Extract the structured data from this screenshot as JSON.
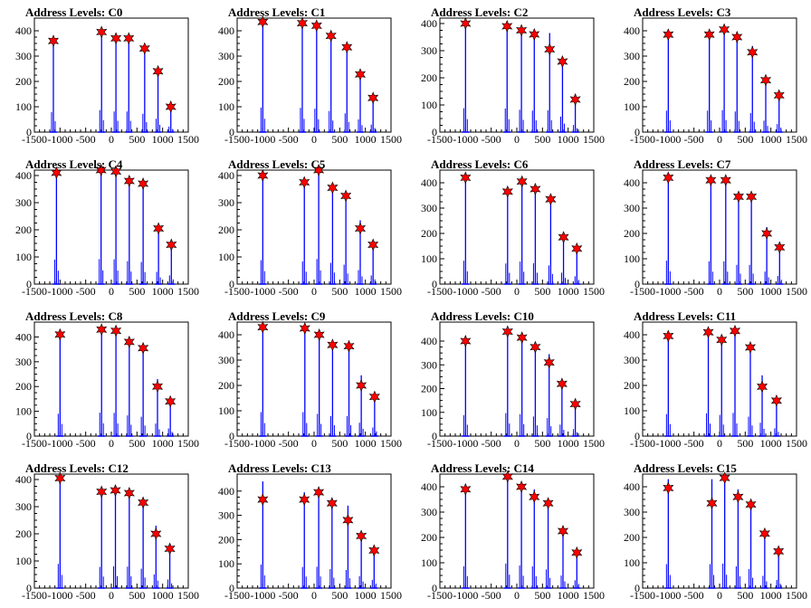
{
  "chart_data": [
    {
      "type": "bar",
      "title": "Address Levels: C0",
      "xlim": [
        -1500,
        1500
      ],
      "ylim": [
        0,
        450
      ],
      "y_ticks": [
        0,
        100,
        200,
        300,
        400
      ],
      "x_tick_labels": [
        "-1500",
        "-1000",
        "-500",
        "0",
        "500",
        "1000",
        "1500"
      ],
      "x": [
        -1130,
        -190,
        90,
        340,
        650,
        910,
        1160
      ],
      "values": [
        360,
        395,
        370,
        370,
        330,
        240,
        100
      ],
      "stars": [
        360,
        395,
        370,
        370,
        330,
        240,
        100
      ]
    },
    {
      "type": "bar",
      "title": "Address Levels: C1",
      "xlim": [
        -1500,
        1500
      ],
      "ylim": [
        0,
        450
      ],
      "y_ticks": [
        0,
        100,
        200,
        300,
        400
      ],
      "x_tick_labels": [
        "-1500",
        "-1000",
        "-500",
        "0",
        "500",
        "1000",
        "1500"
      ],
      "x": [
        -1000,
        -230,
        50,
        330,
        640,
        900,
        1150
      ],
      "values": [
        440,
        435,
        420,
        380,
        335,
        228,
        135
      ],
      "stars": [
        435,
        430,
        420,
        380,
        335,
        228,
        135
      ]
    },
    {
      "type": "bar",
      "title": "Address Levels: C2",
      "xlim": [
        -1500,
        1500
      ],
      "ylim": [
        0,
        420
      ],
      "y_ticks": [
        0,
        100,
        200,
        300,
        400
      ],
      "x_tick_labels": [
        "-1500",
        "-1000",
        "-500",
        "0",
        "500",
        "1000",
        "1500"
      ],
      "x": [
        -1000,
        -190,
        90,
        340,
        640,
        890,
        1140
      ],
      "values": [
        400,
        395,
        375,
        360,
        365,
        260,
        120
      ],
      "stars": [
        400,
        390,
        375,
        360,
        305,
        260,
        120
      ]
    },
    {
      "type": "bar",
      "title": "Address Levels: C3",
      "xlim": [
        -1500,
        1500
      ],
      "ylim": [
        0,
        450
      ],
      "y_ticks": [
        0,
        100,
        200,
        300,
        400
      ],
      "x_tick_labels": [
        "-1500",
        "-1000",
        "-500",
        "0",
        "500",
        "1000",
        "1500"
      ],
      "x": [
        -1000,
        -200,
        90,
        340,
        640,
        900,
        1160
      ],
      "values": [
        385,
        385,
        395,
        370,
        340,
        205,
        145
      ],
      "stars": [
        385,
        385,
        405,
        375,
        315,
        205,
        145
      ]
    },
    {
      "type": "bar",
      "title": "Address Levels: C4",
      "xlim": [
        -1500,
        1500
      ],
      "ylim": [
        0,
        420
      ],
      "y_ticks": [
        0,
        100,
        200,
        300,
        400
      ],
      "x_tick_labels": [
        "-1500",
        "-1000",
        "-500",
        "0",
        "500",
        "1000",
        "1500"
      ],
      "x": [
        -1070,
        -200,
        90,
        350,
        620,
        920,
        1170
      ],
      "values": [
        410,
        420,
        415,
        385,
        370,
        205,
        145
      ],
      "stars": [
        410,
        420,
        415,
        380,
        370,
        205,
        145
      ]
    },
    {
      "type": "bar",
      "title": "Address Levels: C5",
      "xlim": [
        -1500,
        1500
      ],
      "ylim": [
        0,
        420
      ],
      "y_ticks": [
        0,
        100,
        200,
        300,
        400
      ],
      "x_tick_labels": [
        "-1500",
        "-1000",
        "-500",
        "0",
        "500",
        "1000",
        "1500"
      ],
      "x": [
        -1000,
        -190,
        90,
        360,
        620,
        900,
        1150
      ],
      "values": [
        400,
        380,
        420,
        355,
        325,
        235,
        145
      ],
      "stars": [
        400,
        375,
        420,
        355,
        325,
        205,
        145
      ]
    },
    {
      "type": "bar",
      "title": "Address Levels: C6",
      "xlim": [
        -1500,
        1500
      ],
      "ylim": [
        0,
        450
      ],
      "y_ticks": [
        0,
        100,
        200,
        300,
        400
      ],
      "x_tick_labels": [
        "-1500",
        "-1000",
        "-500",
        "0",
        "500",
        "1000",
        "1500"
      ],
      "x": [
        -1000,
        -180,
        100,
        360,
        660,
        910,
        1170
      ],
      "values": [
        420,
        370,
        405,
        375,
        335,
        205,
        140
      ],
      "stars": [
        420,
        365,
        405,
        375,
        335,
        185,
        140
      ]
    },
    {
      "type": "bar",
      "title": "Address Levels: C7",
      "xlim": [
        -1500,
        1500
      ],
      "ylim": [
        0,
        450
      ],
      "y_ticks": [
        0,
        100,
        200,
        300,
        400
      ],
      "x_tick_labels": [
        "-1500",
        "-1000",
        "-500",
        "0",
        "500",
        "1000",
        "1500"
      ],
      "x": [
        -1000,
        -170,
        120,
        370,
        620,
        920,
        1170
      ],
      "values": [
        420,
        410,
        410,
        345,
        345,
        225,
        145
      ],
      "stars": [
        420,
        410,
        410,
        345,
        345,
        200,
        145
      ]
    },
    {
      "type": "bar",
      "title": "Address Levels: C8",
      "xlim": [
        -1500,
        1500
      ],
      "ylim": [
        0,
        460
      ],
      "y_ticks": [
        0,
        100,
        200,
        300,
        400
      ],
      "x_tick_labels": [
        "-1500",
        "-1000",
        "-500",
        "0",
        "500",
        "1000",
        "1500"
      ],
      "x": [
        -1000,
        -190,
        90,
        350,
        620,
        900,
        1150
      ],
      "values": [
        410,
        430,
        425,
        380,
        355,
        230,
        140
      ],
      "stars": [
        410,
        430,
        425,
        380,
        355,
        200,
        140
      ]
    },
    {
      "type": "bar",
      "title": "Address Levels: C9",
      "xlim": [
        -1500,
        1500
      ],
      "ylim": [
        0,
        450
      ],
      "y_ticks": [
        0,
        100,
        200,
        300,
        400
      ],
      "x_tick_labels": [
        "-1500",
        "-1000",
        "-500",
        "0",
        "500",
        "1000",
        "1500"
      ],
      "x": [
        -1000,
        -180,
        100,
        360,
        680,
        920,
        1180
      ],
      "values": [
        430,
        430,
        400,
        360,
        360,
        240,
        155
      ],
      "stars": [
        430,
        425,
        400,
        360,
        355,
        200,
        155
      ]
    },
    {
      "type": "bar",
      "title": "Address Levels: C10",
      "xlim": [
        -1500,
        1500
      ],
      "ylim": [
        0,
        480
      ],
      "y_ticks": [
        0,
        100,
        200,
        300,
        400
      ],
      "x_tick_labels": [
        "-1500",
        "-1000",
        "-500",
        "0",
        "500",
        "1000",
        "1500"
      ],
      "x": [
        -1000,
        -180,
        100,
        360,
        630,
        880,
        1140
      ],
      "values": [
        400,
        440,
        420,
        375,
        345,
        220,
        135
      ],
      "stars": [
        400,
        440,
        415,
        375,
        310,
        220,
        135
      ]
    },
    {
      "type": "bar",
      "title": "Address Levels: C11",
      "xlim": [
        -1500,
        1500
      ],
      "ylim": [
        0,
        450
      ],
      "y_ticks": [
        0,
        100,
        200,
        300,
        400
      ],
      "x_tick_labels": [
        "-1500",
        "-1000",
        "-500",
        "0",
        "500",
        "1000",
        "1500"
      ],
      "x": [
        -1000,
        -220,
        40,
        300,
        600,
        830,
        1110
      ],
      "values": [
        395,
        410,
        380,
        415,
        350,
        240,
        140
      ],
      "stars": [
        395,
        410,
        380,
        415,
        350,
        195,
        140
      ]
    },
    {
      "type": "bar",
      "title": "Address Levels: C12",
      "xlim": [
        -1500,
        1500
      ],
      "ylim": [
        0,
        420
      ],
      "y_ticks": [
        0,
        100,
        200,
        300,
        400
      ],
      "x_tick_labels": [
        "-1500",
        "-1000",
        "-500",
        "0",
        "500",
        "1000",
        "1500"
      ],
      "x": [
        -1000,
        -190,
        80,
        350,
        620,
        870,
        1140
      ],
      "values": [
        405,
        355,
        365,
        360,
        325,
        230,
        145
      ],
      "stars": [
        405,
        355,
        360,
        350,
        315,
        200,
        145
      ]
    },
    {
      "type": "bar",
      "title": "Address Levels: C13",
      "xlim": [
        -1500,
        1500
      ],
      "ylim": [
        0,
        470
      ],
      "y_ticks": [
        0,
        100,
        200,
        300,
        400
      ],
      "x_tick_labels": [
        "-1500",
        "-1000",
        "-500",
        "0",
        "500",
        "1000",
        "1500"
      ],
      "x": [
        -1000,
        -190,
        90,
        350,
        660,
        920,
        1170
      ],
      "values": [
        440,
        395,
        400,
        355,
        340,
        225,
        155
      ],
      "stars": [
        365,
        365,
        395,
        350,
        280,
        215,
        155
      ]
    },
    {
      "type": "bar",
      "title": "Address Levels: C14",
      "xlim": [
        -1500,
        1500
      ],
      "ylim": [
        0,
        450
      ],
      "y_ticks": [
        0,
        100,
        200,
        300,
        400
      ],
      "x_tick_labels": [
        "-1500",
        "-1000",
        "-500",
        "0",
        "500",
        "1000",
        "1500"
      ],
      "x": [
        -1000,
        -180,
        90,
        340,
        610,
        900,
        1170
      ],
      "values": [
        390,
        440,
        405,
        390,
        335,
        225,
        140
      ],
      "stars": [
        390,
        440,
        400,
        360,
        335,
        225,
        140
      ]
    },
    {
      "type": "bar",
      "title": "Address Levels: C15",
      "xlim": [
        -1500,
        1500
      ],
      "ylim": [
        0,
        450
      ],
      "y_ticks": [
        0,
        100,
        200,
        300,
        400
      ],
      "x_tick_labels": [
        "-1500",
        "-1000",
        "-500",
        "0",
        "500",
        "1000",
        "1500"
      ],
      "x": [
        -1000,
        -150,
        100,
        360,
        610,
        880,
        1150
      ],
      "values": [
        430,
        430,
        440,
        390,
        340,
        220,
        145
      ],
      "stars": [
        395,
        335,
        435,
        360,
        330,
        215,
        145
      ]
    }
  ],
  "colors": {
    "bar": "#0000ff",
    "star": "#ff0000",
    "star_outline": "#000000",
    "axis": "#000000"
  }
}
